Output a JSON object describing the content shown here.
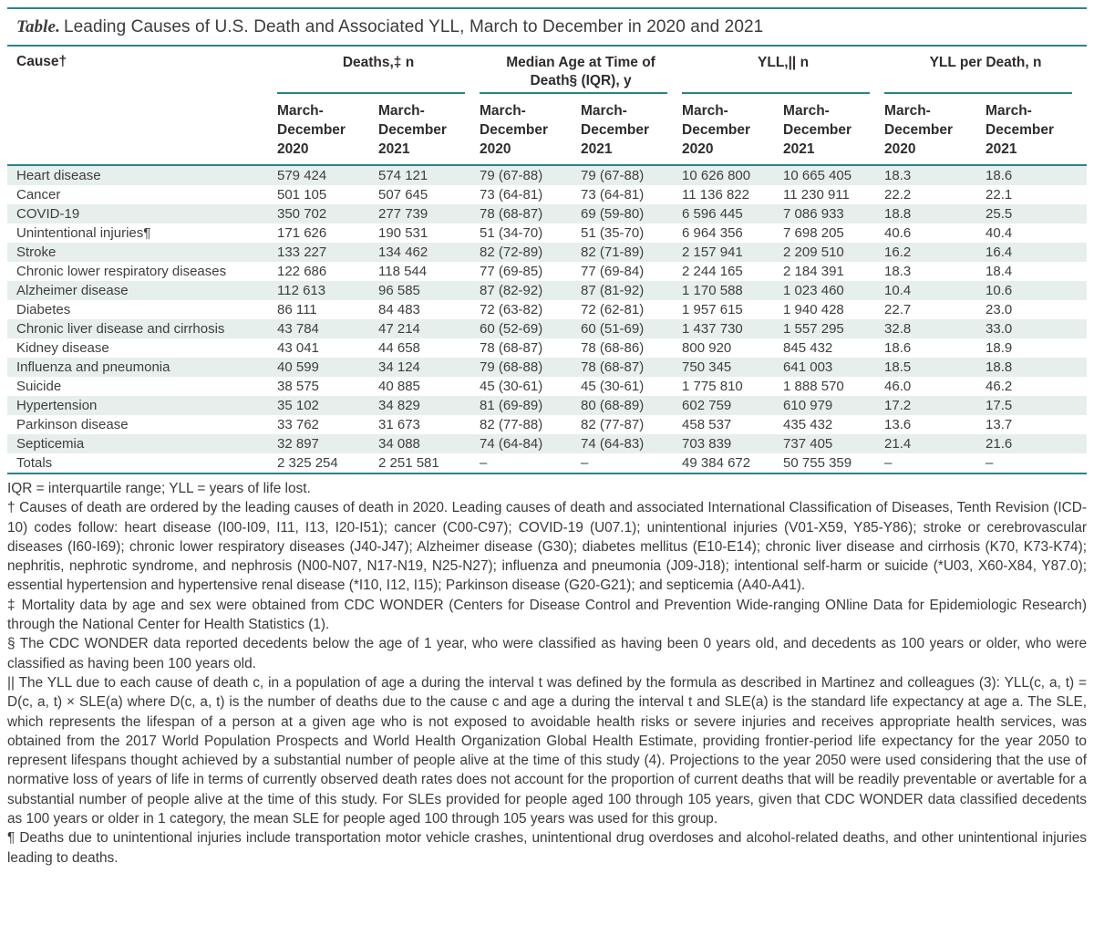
{
  "colors": {
    "accent_teal": "#2a8487",
    "row_band": "#e7efec"
  },
  "title": {
    "prefix": "Table.",
    "text": "Leading Causes of U.S. Death and Associated YLL, March to December in 2020 and 2021"
  },
  "table": {
    "cause_header": "Cause†",
    "groups": [
      {
        "label": "Deaths,‡ n"
      },
      {
        "label": "Median Age at Time of Death§ (IQR), y"
      },
      {
        "label": "YLL,|| n"
      },
      {
        "label": "YLL per Death, n"
      }
    ],
    "period_lines_2020": [
      "March-",
      "December",
      "2020"
    ],
    "period_lines_2021": [
      "March-",
      "December",
      "2021"
    ],
    "rows": [
      {
        "cause": "Heart disease",
        "values": [
          "579 424",
          "574 121",
          "79 (67-88)",
          "79 (67-88)",
          "10 626 800",
          "10 665 405",
          "18.3",
          "18.6"
        ]
      },
      {
        "cause": "Cancer",
        "values": [
          "501 105",
          "507 645",
          "73 (64-81)",
          "73 (64-81)",
          "11 136 822",
          "11 230 911",
          "22.2",
          "22.1"
        ]
      },
      {
        "cause": "COVID-19",
        "values": [
          "350 702",
          "277 739",
          "78 (68-87)",
          "69 (59-80)",
          "6 596 445",
          "7 086 933",
          "18.8",
          "25.5"
        ]
      },
      {
        "cause": "Unintentional injuries¶",
        "values": [
          "171 626",
          "190 531",
          "51 (34-70)",
          "51 (35-70)",
          "6 964 356",
          "7 698 205",
          "40.6",
          "40.4"
        ]
      },
      {
        "cause": "Stroke",
        "values": [
          "133 227",
          "134 462",
          "82 (72-89)",
          "82 (71-89)",
          "2 157 941",
          "2 209 510",
          "16.2",
          "16.4"
        ]
      },
      {
        "cause": "Chronic lower respiratory diseases",
        "values": [
          "122 686",
          "118 544",
          "77 (69-85)",
          "77 (69-84)",
          "2 244 165",
          "2 184 391",
          "18.3",
          "18.4"
        ]
      },
      {
        "cause": "Alzheimer disease",
        "values": [
          "112 613",
          "96 585",
          "87 (82-92)",
          "87 (81-92)",
          "1 170 588",
          "1 023 460",
          "10.4",
          "10.6"
        ]
      },
      {
        "cause": "Diabetes",
        "values": [
          "86 111",
          "84 483",
          "72 (63-82)",
          "72 (62-81)",
          "1 957 615",
          "1 940 428",
          "22.7",
          "23.0"
        ]
      },
      {
        "cause": "Chronic liver disease and cirrhosis",
        "values": [
          "43 784",
          "47 214",
          "60 (52-69)",
          "60 (51-69)",
          "1 437 730",
          "1 557 295",
          "32.8",
          "33.0"
        ]
      },
      {
        "cause": "Kidney disease",
        "values": [
          "43 041",
          "44 658",
          "78 (68-87)",
          "78 (68-86)",
          "800 920",
          "845 432",
          "18.6",
          "18.9"
        ]
      },
      {
        "cause": "Influenza and pneumonia",
        "values": [
          "40 599",
          "34 124",
          "79 (68-88)",
          "78 (68-87)",
          "750 345",
          "641 003",
          "18.5",
          "18.8"
        ]
      },
      {
        "cause": "Suicide",
        "values": [
          "38 575",
          "40 885",
          "45 (30-61)",
          "45 (30-61)",
          "1 775 810",
          "1 888 570",
          "46.0",
          "46.2"
        ]
      },
      {
        "cause": "Hypertension",
        "values": [
          "35 102",
          "34 829",
          "81 (69-89)",
          "80 (68-89)",
          "602 759",
          "610 979",
          "17.2",
          "17.5"
        ]
      },
      {
        "cause": "Parkinson disease",
        "values": [
          "33 762",
          "31 673",
          "82 (77-88)",
          "82 (77-87)",
          "458 537",
          "435 432",
          "13.6",
          "13.7"
        ]
      },
      {
        "cause": "Septicemia",
        "values": [
          "32 897",
          "34 088",
          "74 (64-84)",
          "74 (64-83)",
          "703 839",
          "737 405",
          "21.4",
          "21.6"
        ]
      },
      {
        "cause": "Totals",
        "values": [
          "2 325 254",
          "2 251 581",
          "–",
          "–",
          "49 384 672",
          "50 755 359",
          "–",
          "–"
        ]
      }
    ]
  },
  "footnotes": [
    "IQR = interquartile range; YLL = years of life lost.",
    "† Causes of death are ordered by the leading causes of death in 2020. Leading causes of death and associated International Classification of Diseases, Tenth Revision (ICD-10) codes follow: heart disease (I00-I09, I11, I13, I20-I51); cancer (C00-C97); COVID-19 (U07.1); unintentional injuries (V01-X59, Y85-Y86); stroke or cerebrovascular diseases (I60-I69); chronic lower respiratory diseases (J40-J47); Alzheimer disease (G30); diabetes mellitus (E10-E14); chronic liver disease and cirrhosis (K70, K73-K74); nephritis, nephrotic syndrome, and nephrosis (N00-N07, N17-N19, N25-N27); influenza and pneumonia (J09-J18); intentional self-harm or suicide (*U03, X60-X84, Y87.0); essential hypertension and hypertensive renal disease (*I10, I12, I15); Parkinson disease (G20-G21); and septicemia (A40-A41).",
    "‡ Mortality data by age and sex were obtained from CDC WONDER (Centers for Disease Control and Prevention Wide-ranging ONline Data for Epidemiologic Research) through the National Center for Health Statistics (1).",
    "§ The CDC WONDER data reported decedents below the age of 1 year, who were classified as having been 0 years old, and decedents as 100 years or older, who were classified as having been 100 years old.",
    "|| The YLL due to each cause of death c, in a population of age a during the interval t was defined by the formula as described in Martinez and colleagues (3): YLL(c, a, t) = D(c, a, t) × SLE(a) where D(c, a, t) is the number of deaths due to the cause c and age a during the interval t and SLE(a) is the standard life expectancy at age a. The SLE, which represents the lifespan of a person at a given age who is not exposed to avoidable health risks or severe injuries and receives appropriate health services, was obtained from the 2017 World Population Prospects and World Health Organization Global Health Estimate, providing frontier-period life expectancy for the year 2050 to represent lifespans thought achieved by a substantial number of people alive at the time of this study (4). Projections to the year 2050 were used considering that the use of normative loss of years of life in terms of currently observed death rates does not account for the proportion of current deaths that will be readily preventable or avertable for a substantial number of people alive at the time of this study. For SLEs provided for people aged 100 through 105 years, given that CDC WONDER data classified decedents as 100 years or older in 1 category, the mean SLE for people aged 100 through 105 years was used for this group.",
    "¶ Deaths due to unintentional injuries include transportation motor vehicle crashes, unintentional drug overdoses and alcohol-related deaths, and other unintentional injuries leading to deaths."
  ]
}
